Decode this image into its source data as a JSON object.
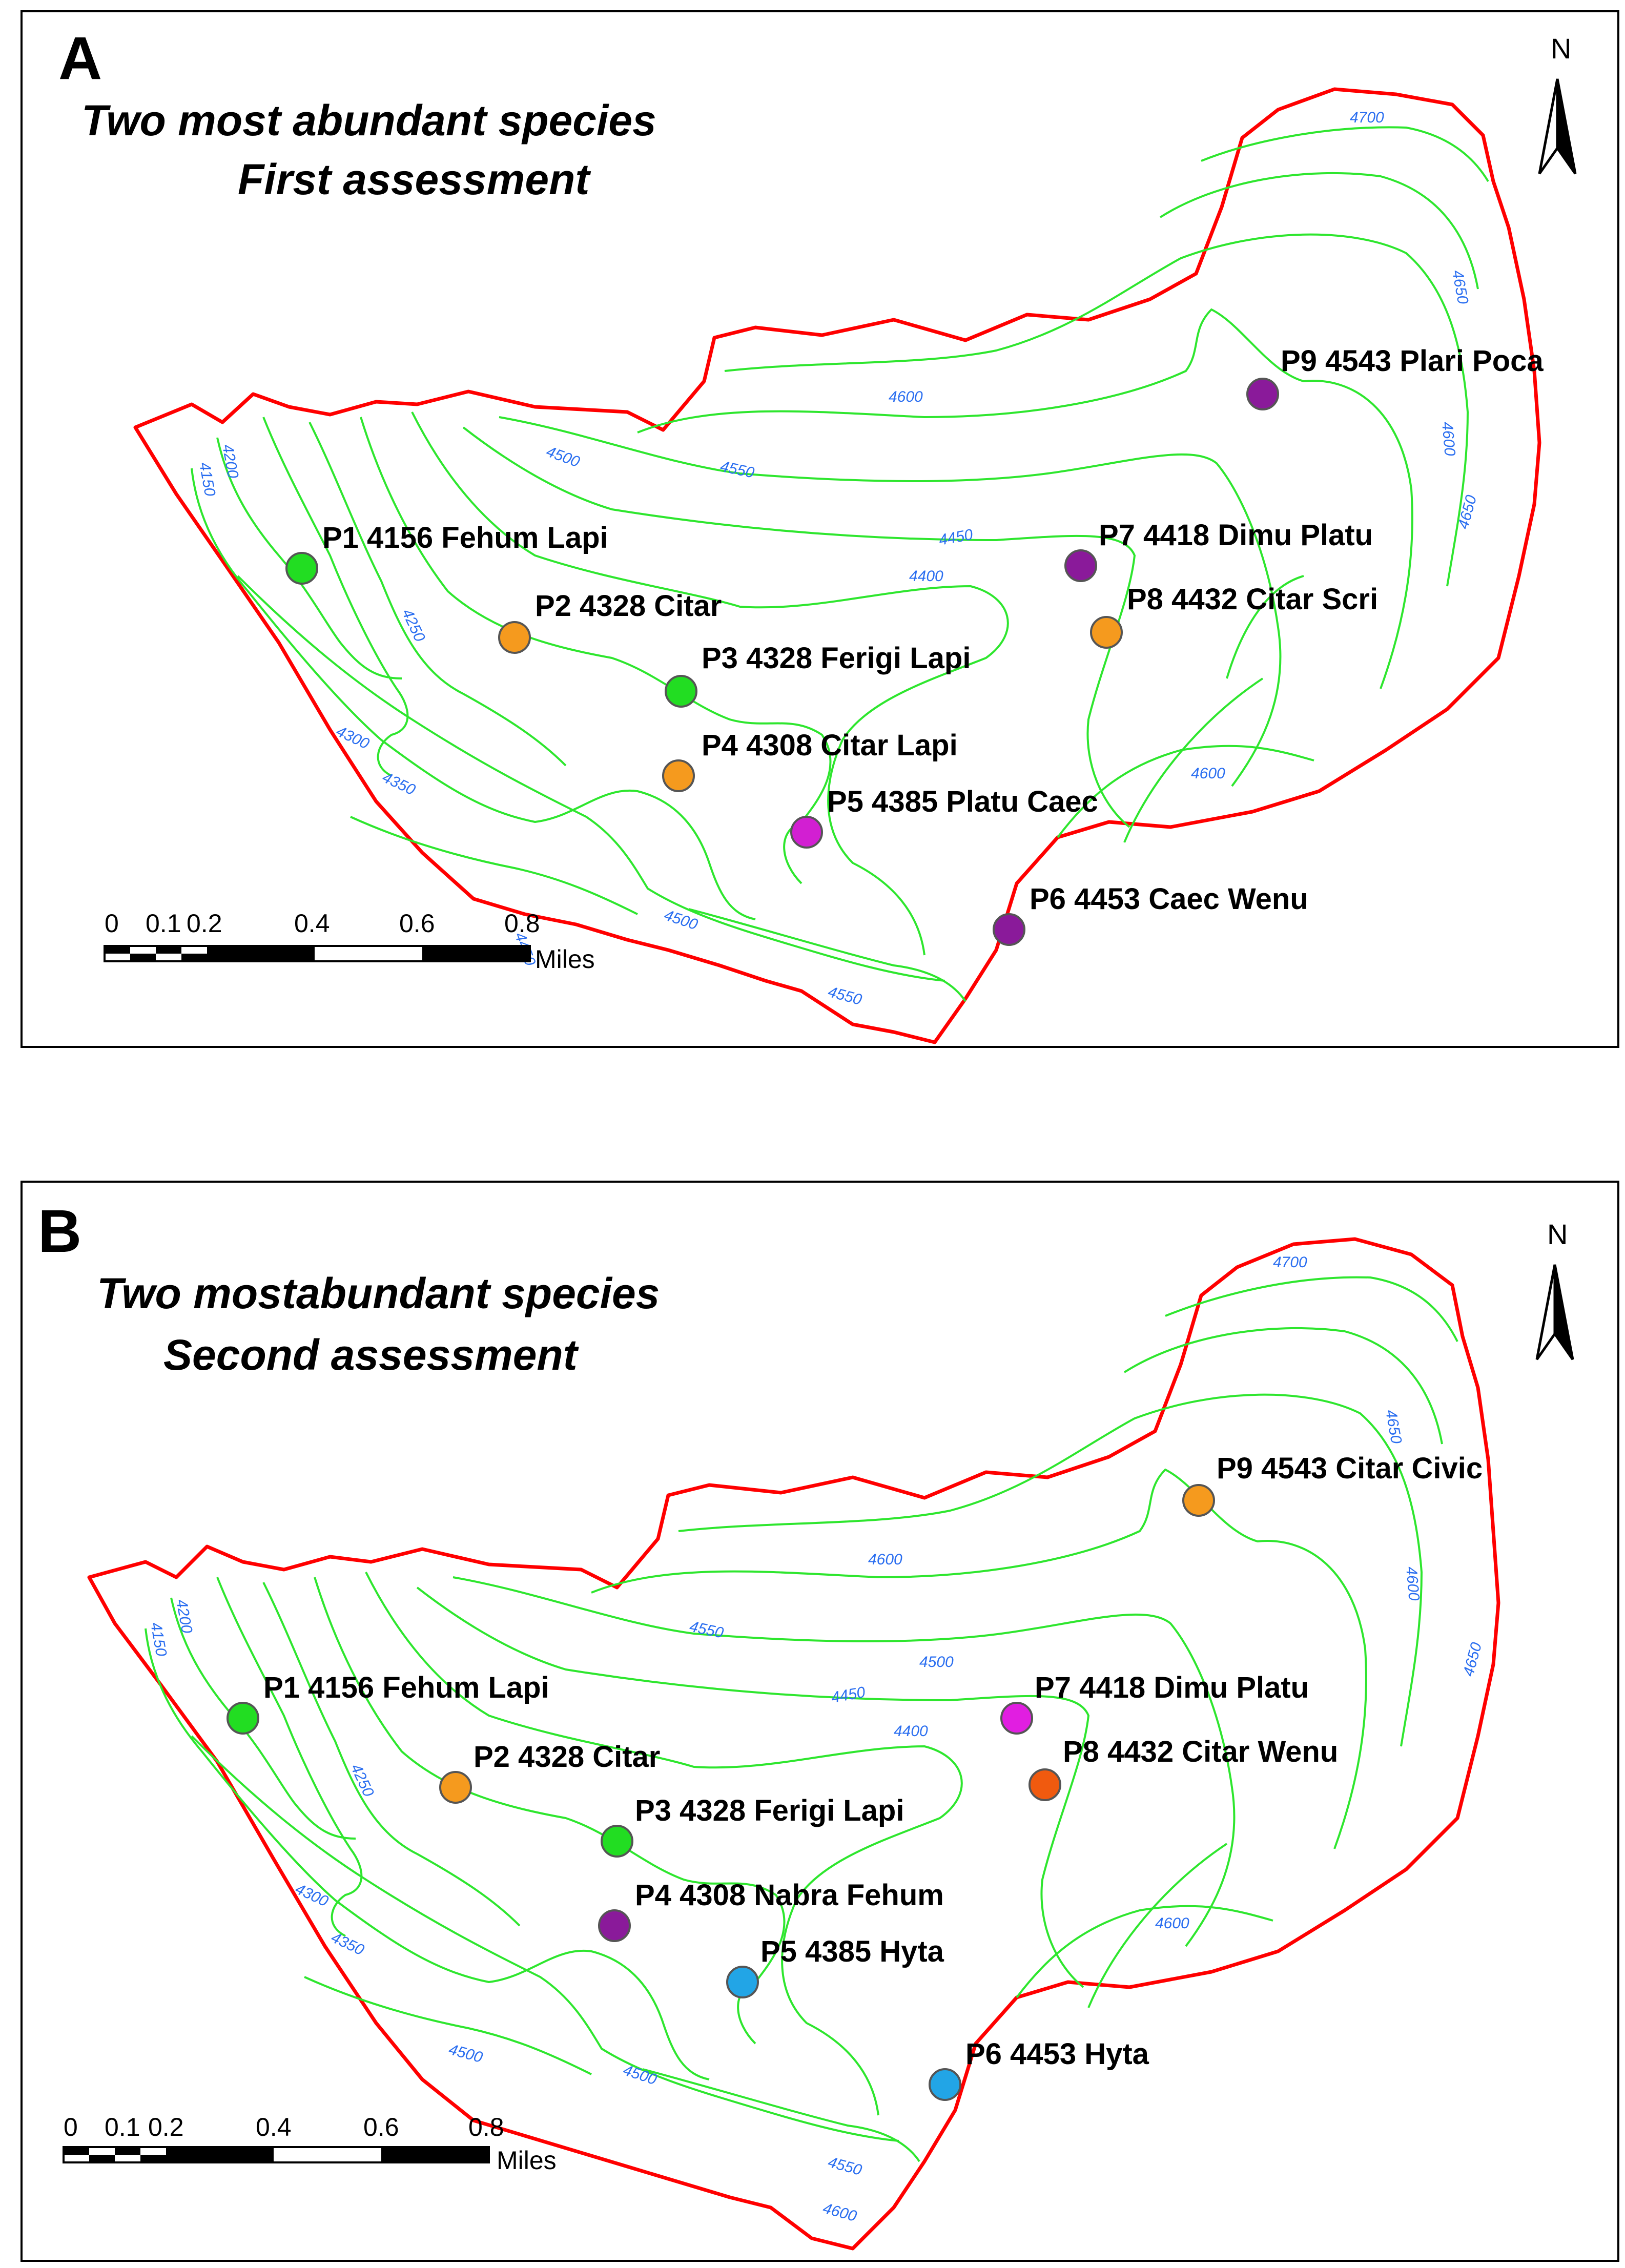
{
  "panels": [
    {
      "letter": "A",
      "title_line1": "Two most abundant species",
      "title_line2": "First assessment",
      "north": "N",
      "scale": {
        "ticks": [
          "0",
          "0.1",
          "0.2",
          "0.4",
          "0.6",
          "0.8"
        ],
        "unit": "Miles"
      },
      "contour_labels": [
        "4700",
        "4650",
        "4600",
        "4650",
        "4600",
        "4550",
        "4500",
        "4450",
        "4400",
        "4200",
        "4150",
        "4250",
        "4300",
        "4350",
        "4600",
        "4500",
        "4550",
        "4450"
      ],
      "points": [
        {
          "label": "P1 4156 Fehum Lapi",
          "color": "#22dd22"
        },
        {
          "label": "P2 4328 Citar",
          "color": "#f59a1e"
        },
        {
          "label": "P3 4328 Ferigi Lapi",
          "color": "#22dd22"
        },
        {
          "label": "P4 4308 Citar Lapi",
          "color": "#f59a1e"
        },
        {
          "label": "P5 4385 Platu Caec",
          "color": "#d21fd2"
        },
        {
          "label": "P6 4453 Caec Wenu",
          "color": "#8a1a9a"
        },
        {
          "label": "P7 4418 Dimu Platu",
          "color": "#8a1a9a"
        },
        {
          "label": "P8 4432 Citar Scri",
          "color": "#f59a1e"
        },
        {
          "label": "P9 4543 Plari Poca",
          "color": "#8a1a9a"
        }
      ]
    },
    {
      "letter": "B",
      "title_line1": "Two mostabundant species",
      "title_line2": "Second assessment",
      "north": "N",
      "scale": {
        "ticks": [
          "0",
          "0.1",
          "0.2",
          "0.4",
          "0.6",
          "0.8"
        ],
        "unit": "Miles"
      },
      "contour_labels": [
        "4700",
        "4650",
        "4600",
        "4650",
        "4600",
        "4550",
        "4500",
        "4450",
        "4400",
        "4200",
        "4150",
        "4250",
        "4300",
        "4350",
        "4600",
        "4500",
        "4500",
        "4550",
        "4600"
      ],
      "points": [
        {
          "label": "P1 4156 Fehum Lapi",
          "color": "#22dd22"
        },
        {
          "label": "P2 4328 Citar",
          "color": "#f59a1e"
        },
        {
          "label": "P3 4328 Ferigi Lapi",
          "color": "#22dd22"
        },
        {
          "label": "P4 4308 Nabra Fehum",
          "color": "#8a1a9a"
        },
        {
          "label": "P5 4385 Hyta",
          "color": "#22a5e6"
        },
        {
          "label": "P6 4453 Hyta",
          "color": "#22a5e6"
        },
        {
          "label": "P7 4418 Dimu Platu",
          "color": "#e11ee1"
        },
        {
          "label": "P8 4432 Citar Wenu",
          "color": "#f05a0f"
        },
        {
          "label": "P9 4543 Citar Civic",
          "color": "#f59a1e"
        }
      ]
    }
  ]
}
